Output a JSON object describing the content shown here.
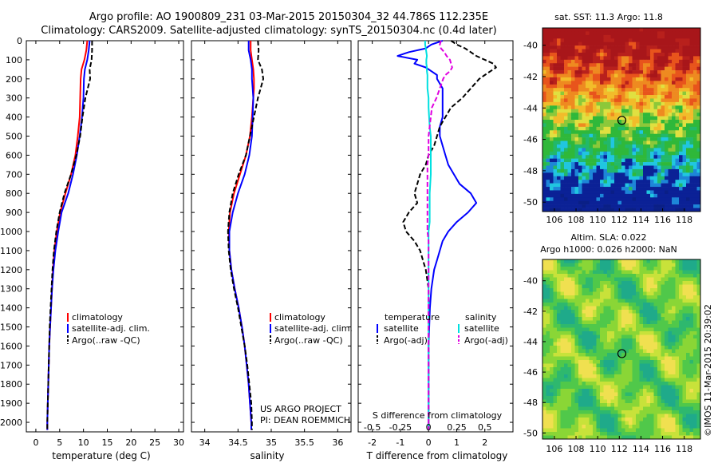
{
  "header": {
    "line1": "Argo profile: AO 1900809_231 03-Mar-2015 20150304_32 44.786S 112.235E",
    "line2": "Climatology: CARS2009. Satellite-adjusted climatology: synTS_20150304.nc (0.4d later)"
  },
  "colors": {
    "climatology": "#ff0000",
    "satellite": "#0000ff",
    "argo": "#000000",
    "salinity_satellite": "#00e0e0",
    "salinity_argo": "#e000e0"
  },
  "panels": {
    "temperature": {
      "xlabel": "temperature (deg C)",
      "xticks": [
        "0",
        "5",
        "10",
        "15",
        "20",
        "25",
        "30"
      ],
      "legend": [
        "climatology",
        "satellite-adj. clim.",
        "Argo(..raw -QC)"
      ]
    },
    "salinity": {
      "xlabel": "salinity",
      "xticks": [
        "34",
        "34.5",
        "35",
        "35.5",
        "36"
      ],
      "legend": [
        "climatology",
        "satellite-adj. clim.",
        "Argo(..raw -QC)"
      ],
      "credit1": "US ARGO PROJECT",
      "credit2": "PI: DEAN ROEMMICH"
    },
    "difference": {
      "xlabel": "T difference from climatology",
      "toplabel": "S difference from climatology",
      "xticks": [
        "-2",
        "-1",
        "0",
        "1",
        "2"
      ],
      "sticks": [
        "-0.5",
        "-0.25",
        "0",
        "0.25",
        "0.5"
      ],
      "leg_temp_title": "temperature",
      "leg_sal_title": "salinity",
      "leg_temp": [
        "satellite",
        "Argo(-adj)"
      ],
      "leg_sal": [
        "satellite",
        "Argo(-adj)"
      ]
    }
  },
  "maps": {
    "sst_title": "sat. SST: 11.3 Argo: 11.8",
    "sla_title1": "Altim. SLA: 0.022",
    "sla_title2": "Argo h1000: 0.026 h2000: NaN",
    "xticks": [
      "106",
      "108",
      "110",
      "112",
      "114",
      "116",
      "118"
    ],
    "yticks": [
      "-40",
      "-42",
      "-44",
      "-46",
      "-48",
      "-50"
    ],
    "marker_lon": 112.235,
    "marker_lat": -44.786,
    "watermark": "©IMOS 11-Mar-2015 20:39:02"
  },
  "chart_data": [
    {
      "type": "line",
      "title": "",
      "xlabel": "temperature (deg C)",
      "ylabel": "",
      "xlim": [
        -2,
        31
      ],
      "ylim": [
        2050,
        0
      ],
      "yticks": [
        "0",
        "100",
        "200",
        "300",
        "400",
        "500",
        "600",
        "700",
        "800",
        "900",
        "1000",
        "1100",
        "1200",
        "1300",
        "1400",
        "1500",
        "1600",
        "1700",
        "1800",
        "1900",
        "2000"
      ],
      "depth": [
        0,
        50,
        100,
        150,
        200,
        300,
        400,
        500,
        600,
        700,
        800,
        900,
        1000,
        1100,
        1200,
        1300,
        1400,
        1500,
        1600,
        1700,
        1800,
        1900,
        2000,
        2040
      ],
      "series": [
        {
          "name": "climatology",
          "values": [
            10.8,
            10.6,
            10.2,
            9.6,
            9.4,
            9.3,
            9.2,
            8.8,
            8.3,
            7.4,
            6.2,
            5.1,
            4.4,
            3.9,
            3.6,
            3.4,
            3.2,
            3.0,
            2.8,
            2.7,
            2.6,
            2.5,
            2.4,
            2.4
          ]
        },
        {
          "name": "satellite-adj. clim.",
          "values": [
            11.3,
            11.1,
            10.8,
            10.3,
            10.1,
            10.0,
            9.7,
            9.2,
            8.6,
            7.8,
            6.8,
            5.4,
            4.7,
            4.1,
            3.7,
            3.4,
            3.2,
            3.0,
            2.8,
            2.7,
            2.6,
            2.5,
            2.4,
            2.4
          ]
        },
        {
          "name": "Argo(..raw -QC)",
          "values": [
            11.8,
            11.8,
            11.7,
            11.3,
            11.4,
            10.4,
            9.8,
            9.3,
            8.5,
            7.4,
            6.0,
            5.0,
            4.3,
            3.8,
            3.5,
            3.3,
            3.1,
            2.9,
            2.8,
            2.7,
            2.6,
            2.5,
            2.4,
            2.4
          ]
        }
      ]
    },
    {
      "type": "line",
      "title": "",
      "xlabel": "salinity",
      "ylabel": "",
      "xlim": [
        33.8,
        36.2
      ],
      "ylim": [
        2050,
        0
      ],
      "depth": [
        0,
        50,
        100,
        150,
        200,
        250,
        300,
        400,
        500,
        600,
        700,
        800,
        900,
        1000,
        1100,
        1200,
        1300,
        1400,
        1500,
        1600,
        1700,
        1800,
        1900,
        2000,
        2040
      ],
      "series": [
        {
          "name": "climatology",
          "values": [
            34.69,
            34.69,
            34.71,
            34.73,
            34.74,
            34.74,
            34.73,
            34.71,
            34.68,
            34.62,
            34.53,
            34.44,
            34.38,
            34.36,
            34.37,
            34.4,
            34.45,
            34.51,
            34.56,
            34.6,
            34.63,
            34.66,
            34.68,
            34.7,
            34.7
          ]
        },
        {
          "name": "satellite-adj. clim.",
          "values": [
            34.66,
            34.66,
            34.69,
            34.71,
            34.71,
            34.72,
            34.73,
            34.72,
            34.71,
            34.67,
            34.6,
            34.5,
            34.42,
            34.37,
            34.37,
            34.4,
            34.45,
            34.51,
            34.56,
            34.6,
            34.63,
            34.66,
            34.68,
            34.7,
            34.7
          ]
        },
        {
          "name": "Argo(..raw -QC)",
          "values": [
            34.8,
            34.81,
            34.8,
            34.86,
            34.88,
            34.84,
            34.8,
            34.74,
            34.68,
            34.62,
            34.51,
            34.42,
            34.37,
            34.35,
            34.36,
            34.39,
            34.44,
            34.5,
            34.55,
            34.6,
            34.64,
            34.67,
            34.7,
            34.71,
            34.71
          ]
        }
      ]
    },
    {
      "type": "line",
      "title": "",
      "xlabel": "T difference from climatology",
      "ylabel": "",
      "xlim": [
        -2.5,
        3.0
      ],
      "x2lim": [
        -0.625,
        0.75
      ],
      "ylim": [
        2050,
        0
      ],
      "depth": [
        0,
        20,
        40,
        60,
        80,
        100,
        120,
        140,
        160,
        180,
        200,
        250,
        300,
        350,
        400,
        450,
        500,
        550,
        600,
        650,
        700,
        750,
        800,
        850,
        900,
        950,
        1000,
        1050,
        1100,
        1150,
        1200,
        1300,
        1400,
        1600,
        1800,
        2000,
        2040
      ],
      "series": [
        {
          "name": "temperature satellite",
          "values": [
            0.5,
            0.1,
            -0.1,
            -0.7,
            -1.1,
            -0.4,
            -0.5,
            -0.1,
            0.1,
            0.3,
            0.3,
            0.5,
            0.5,
            0.5,
            0.5,
            0.4,
            0.4,
            0.5,
            0.6,
            0.7,
            0.9,
            1.1,
            1.5,
            1.7,
            1.4,
            1.0,
            0.7,
            0.5,
            0.4,
            0.3,
            0.2,
            0.1,
            0.05,
            0.0,
            0.0,
            0.0,
            0.0
          ]
        },
        {
          "name": "temperature Argo(-adj)",
          "values": [
            0.8,
            1.0,
            1.3,
            1.5,
            1.7,
            2.0,
            2.3,
            2.4,
            2.2,
            2.0,
            1.8,
            1.5,
            1.2,
            0.8,
            0.6,
            0.4,
            0.3,
            0.2,
            0.0,
            -0.1,
            -0.3,
            -0.4,
            -0.5,
            -0.4,
            -0.7,
            -0.9,
            -0.8,
            -0.5,
            -0.3,
            -0.2,
            -0.1,
            0.0,
            0.0,
            0.0,
            0.0,
            0.0,
            0.0
          ]
        },
        {
          "name": "salinity satellite",
          "values": [
            -0.03,
            -0.03,
            -0.025,
            -0.02,
            -0.015,
            -0.02,
            -0.02,
            -0.015,
            -0.015,
            -0.01,
            -0.01,
            -0.01,
            0.0,
            0.0,
            0.005,
            0.01,
            0.02,
            0.02,
            0.02,
            0.02,
            0.02,
            0.015,
            0.01,
            0.01,
            0.01,
            0.01,
            0.0,
            0.0,
            0.0,
            0.0,
            0.0,
            0.0,
            0.0,
            0.0,
            0.0,
            0.0,
            0.0
          ]
        },
        {
          "name": "salinity Argo(-adj)",
          "values": [
            0.11,
            0.1,
            0.11,
            0.14,
            0.16,
            0.19,
            0.2,
            0.21,
            0.19,
            0.15,
            0.13,
            0.1,
            0.07,
            0.03,
            0.02,
            0.01,
            0.0,
            0.0,
            0.0,
            -0.01,
            -0.01,
            -0.01,
            -0.01,
            -0.01,
            -0.01,
            -0.01,
            -0.01,
            0.0,
            0.0,
            0.0,
            0.0,
            0.0,
            0.0,
            0.0,
            0.0,
            0.0,
            0.0
          ]
        }
      ]
    }
  ]
}
